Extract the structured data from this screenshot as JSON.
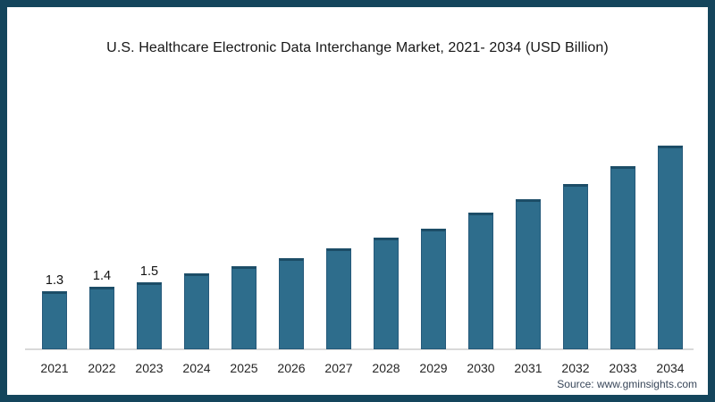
{
  "title": "U.S. Healthcare Electronic Data Interchange Market, 2021- 2034 (USD Billion)",
  "source": "Source: www.gminsights.com",
  "frame": {
    "border_color": "#14455c",
    "background_color": "#ffffff"
  },
  "chart_data": {
    "type": "bar",
    "title": "U.S. Healthcare Electronic Data Interchange Market, 2021- 2034 (USD Billion)",
    "xlabel": "",
    "ylabel": "",
    "categories": [
      "2021",
      "2022",
      "2023",
      "2024",
      "2025",
      "2026",
      "2027",
      "2028",
      "2029",
      "2030",
      "2031",
      "2032",
      "2033",
      "2034"
    ],
    "values": [
      1.3,
      1.4,
      1.5,
      1.7,
      1.85,
      2.05,
      2.25,
      2.5,
      2.7,
      3.05,
      3.35,
      3.7,
      4.1,
      4.55
    ],
    "data_labels": [
      "1.3",
      "1.4",
      "1.5",
      "",
      "",
      "",
      "",
      "",
      "",
      "",
      "",
      "",
      "",
      ""
    ],
    "ylim": [
      0,
      5
    ],
    "grid": false,
    "legend": false,
    "y_axis_visible": false,
    "bar_color": "#2e6d8c",
    "bar_top_edge_color": "#1c4d67",
    "axis_line_color": "#d9d9d9"
  }
}
